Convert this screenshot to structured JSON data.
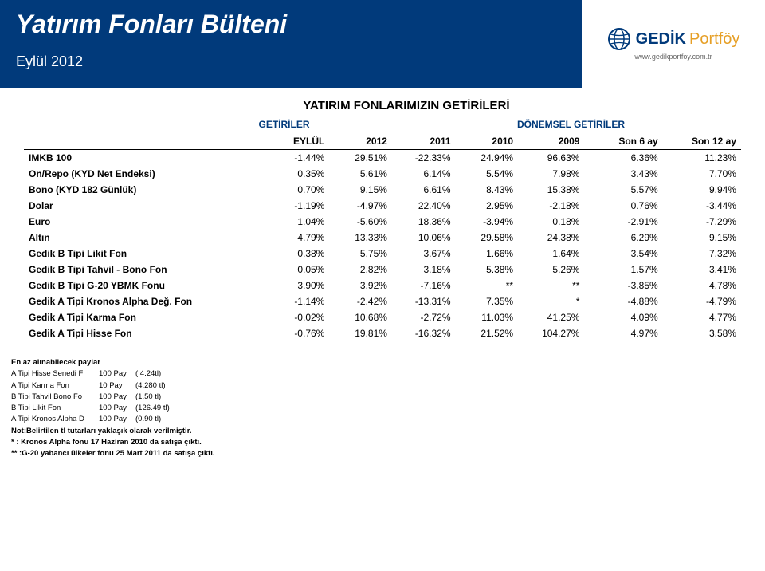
{
  "banner": {
    "title": "Yatırım Fonları Bülteni",
    "subtitle": "Eylül 2012",
    "logo_name": "GEDİK",
    "logo_suffix": "Portföy",
    "logo_url": "www.gedikportfoy.com.tr",
    "bg_color": "#013a7b",
    "text_color": "#ffffff",
    "accent_color": "#e69f26"
  },
  "heading": "YATIRIM FONLARIMIZIN GETİRİLERİ",
  "group_headers": {
    "a": "GETİRİLER",
    "b": "DÖNEMSEL GETİRİLER"
  },
  "columns": [
    "EYLÜL",
    "2012",
    "2011",
    "2010",
    "2009",
    "Son 6 ay",
    "Son 12 ay"
  ],
  "rows": [
    {
      "label": "IMKB 100",
      "v": [
        "-1.44%",
        "29.51%",
        "-22.33%",
        "24.94%",
        "96.63%",
        "6.36%",
        "11.23%"
      ]
    },
    {
      "label": "On/Repo (KYD Net Endeksi)",
      "v": [
        "0.35%",
        "5.61%",
        "6.14%",
        "5.54%",
        "7.98%",
        "3.43%",
        "7.70%"
      ]
    },
    {
      "label": "Bono (KYD 182 Günlük)",
      "v": [
        "0.70%",
        "9.15%",
        "6.61%",
        "8.43%",
        "15.38%",
        "5.57%",
        "9.94%"
      ]
    },
    {
      "label": "Dolar",
      "v": [
        "-1.19%",
        "-4.97%",
        "22.40%",
        "2.95%",
        "-2.18%",
        "0.76%",
        "-3.44%"
      ]
    },
    {
      "label": "Euro",
      "v": [
        "1.04%",
        "-5.60%",
        "18.36%",
        "-3.94%",
        "0.18%",
        "-2.91%",
        "-7.29%"
      ]
    },
    {
      "label": "Altın",
      "v": [
        "4.79%",
        "13.33%",
        "10.06%",
        "29.58%",
        "24.38%",
        "6.29%",
        "9.15%"
      ]
    },
    {
      "label": "Gedik B Tipi Likit Fon",
      "v": [
        "0.38%",
        "5.75%",
        "3.67%",
        "1.66%",
        "1.64%",
        "3.54%",
        "7.32%"
      ]
    },
    {
      "label": "Gedik B Tipi Tahvil - Bono Fon",
      "v": [
        "0.05%",
        "2.82%",
        "3.18%",
        "5.38%",
        "5.26%",
        "1.57%",
        "3.41%"
      ]
    },
    {
      "label": "Gedik B Tipi G-20 YBMK Fonu",
      "v": [
        "3.90%",
        "3.92%",
        "-7.16%",
        "**",
        "**",
        "-3.85%",
        "4.78%"
      ]
    },
    {
      "label": "Gedik A Tipi Kronos Alpha Değ. Fon",
      "v": [
        "-1.14%",
        "-2.42%",
        "-13.31%",
        "7.35%",
        "*",
        "-4.88%",
        "-4.79%"
      ]
    },
    {
      "label": "Gedik A Tipi Karma Fon",
      "v": [
        "-0.02%",
        "10.68%",
        "-2.72%",
        "11.03%",
        "41.25%",
        "4.09%",
        "4.77%"
      ]
    },
    {
      "label": "Gedik A Tipi Hisse Fon",
      "v": [
        "-0.76%",
        "19.81%",
        "-16.32%",
        "21.52%",
        "104.27%",
        "4.97%",
        "3.58%"
      ]
    }
  ],
  "footnotes": {
    "title": "En az alınabilecek paylar",
    "items": [
      {
        "a": "A Tipi Hisse Senedi F",
        "b": "100 Pay",
        "c": "( 4.24tl)"
      },
      {
        "a": "A Tipi Karma Fon",
        "b": "10 Pay",
        "c": "(4.280 tl)"
      },
      {
        "a": "B Tipi Tahvil Bono Fo",
        "b": "100 Pay",
        "c": "(1.50 tl)"
      },
      {
        "a": "B Tipi Likit Fon",
        "b": "100 Pay",
        "c": "(126.49 tl)"
      },
      {
        "a": "A Tipi Kronos Alpha D",
        "b": "100 Pay",
        "c": "(0.90 tl)"
      }
    ],
    "note1": "Not:Belirtilen tl tutarları yaklaşık olarak verilmiştir.",
    "note2": "* : Kronos Alpha fonu 17 Haziran 2010 da satışa çıktı.",
    "note3": "** :G-20 yabancı ülkeler fonu 25 Mart 2011 da satışa çıktı."
  }
}
